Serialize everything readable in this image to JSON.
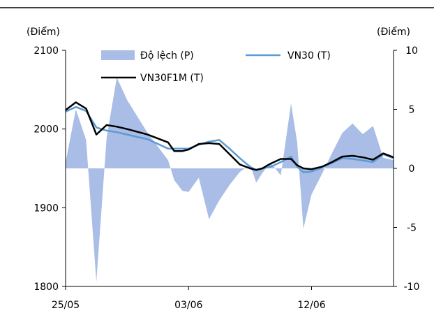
{
  "chart_data": {
    "type": "area+line",
    "left_axis_label": "(Điểm)",
    "right_axis_label": "(Điểm)",
    "left_ylim": [
      1800,
      2100
    ],
    "left_ticks": [
      "2100",
      "2000",
      "1900",
      "1800"
    ],
    "right_ylim": [
      -10,
      10
    ],
    "right_ticks": [
      "10",
      "5",
      "0",
      "-5",
      "-10"
    ],
    "x_tick_labels": [
      {
        "index": 0,
        "label": "25/05"
      },
      {
        "index": 6,
        "label": "03/06"
      },
      {
        "index": 12,
        "label": "12/06"
      }
    ],
    "num_points": 17,
    "legend_placement": "top",
    "x_index": [
      0,
      0.5,
      1,
      1.5,
      2,
      2.5,
      3,
      4,
      5,
      5.3,
      5.7,
      6,
      6.5,
      7,
      7.5,
      8,
      8.5,
      9,
      9.3,
      9.6,
      10,
      10.5,
      11,
      11.3,
      11.6,
      12,
      12.5,
      13,
      13.5,
      14,
      14.5,
      15,
      15.5,
      16
    ],
    "series": [
      {
        "name": "Độ lệch (P)",
        "axis": "right",
        "kind": "area",
        "color": "#a9bde6",
        "values": [
          0.5,
          5.0,
          2.4,
          -9.6,
          2.6,
          7.7,
          5.8,
          3.0,
          0.7,
          -1.0,
          -1.9,
          -2.0,
          -0.8,
          -4.3,
          -2.7,
          -1.4,
          -0.3,
          0.3,
          -1.2,
          -0.4,
          0.5,
          -0.6,
          5.5,
          2.2,
          -5.1,
          -2.2,
          -0.5,
          1.3,
          3.0,
          3.8,
          2.9,
          3.6,
          0.9,
          0.7
        ]
      },
      {
        "name": "VN30 (T)",
        "axis": "left",
        "kind": "line",
        "color": "#5b9bd5",
        "values": [
          2022,
          2028,
          2023,
          2002,
          1998,
          1996,
          1993,
          1987,
          1975,
          1975,
          1975,
          1975,
          1980,
          1984,
          1986,
          1975,
          1963,
          1952,
          1948,
          1950,
          1952,
          1958,
          1965,
          1952,
          1945,
          1946,
          1951,
          1957,
          1963,
          1962,
          1960,
          1958,
          1968,
          1963
        ]
      },
      {
        "name": "VN30F1M (T)",
        "axis": "left",
        "kind": "line",
        "color": "#000000",
        "values": [
          2024,
          2034,
          2026,
          1993,
          2005,
          2003,
          2000,
          1993,
          1983,
          1972,
          1972,
          1974,
          1981,
          1982,
          1981,
          1968,
          1955,
          1950,
          1948,
          1950,
          1956,
          1962,
          1962,
          1954,
          1950,
          1949,
          1952,
          1958,
          1965,
          1966,
          1964,
          1961,
          1969,
          1964
        ]
      }
    ]
  }
}
